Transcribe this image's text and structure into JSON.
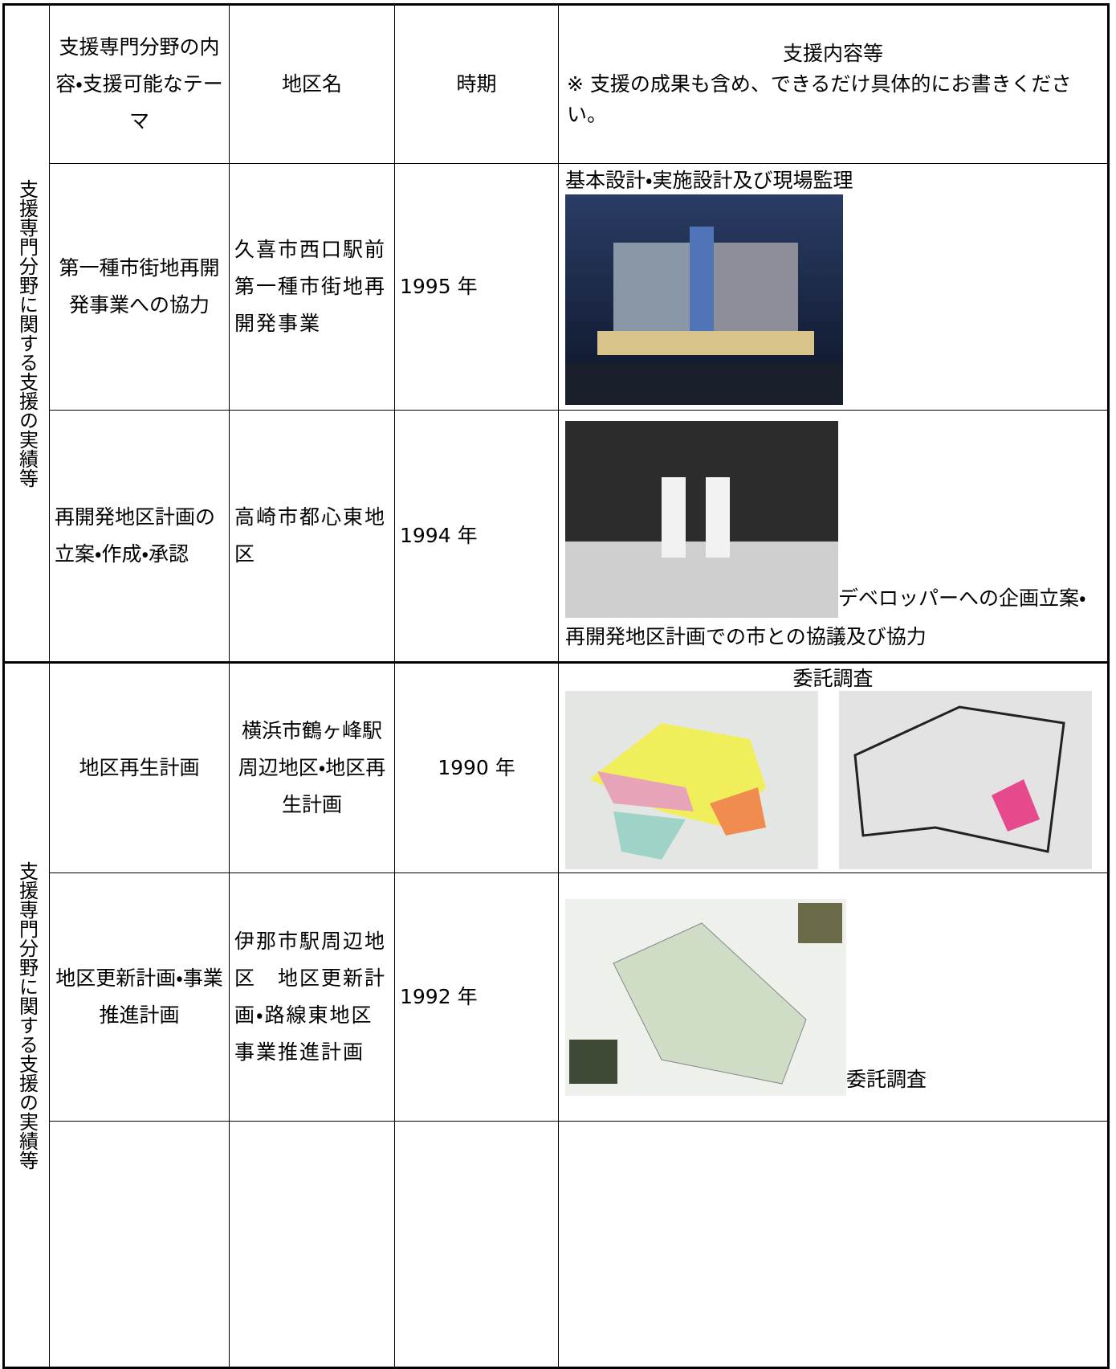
{
  "sections": [
    {
      "label": "支援専門分野に関する支援の実績等"
    },
    {
      "label": "支援専門分野に関する支援の実績等"
    }
  ],
  "table": {
    "header": [
      "支援専門分野の内容・支援可能なテーマ",
      "地区名",
      "時期",
      "支援内容等"
    ],
    "header_note": "※ 支援の成果も含め、できるだけ具体的にお書きください。",
    "rows": [
      {
        "theme": "第一種市街地再開発事業への協力",
        "district": "久喜市西口駅前第一種市街地再開発事業",
        "period": "1995 年",
        "content": "基本設計・実施設計及び現場監理"
      },
      {
        "theme": "再開発地区計画の立案・作成・承認",
        "district": "高崎市都心東地区",
        "period": "1994 年",
        "content": "デベロッパーへの企画立案・再開発地区計画での市との協議及び協力"
      },
      {
        "theme": "地区再生計画",
        "district": "横浜市鶴ヶ峰駅周辺地区・地区再生計画",
        "period": "1990 年",
        "content": "委託調査"
      },
      {
        "theme": "地区更新計画・事業推進計画",
        "district": "伊那市駅周辺地区　地区更新計画・路線東地区事業推進計画",
        "period": "1992 年",
        "content": "委託調査"
      }
    ]
  }
}
